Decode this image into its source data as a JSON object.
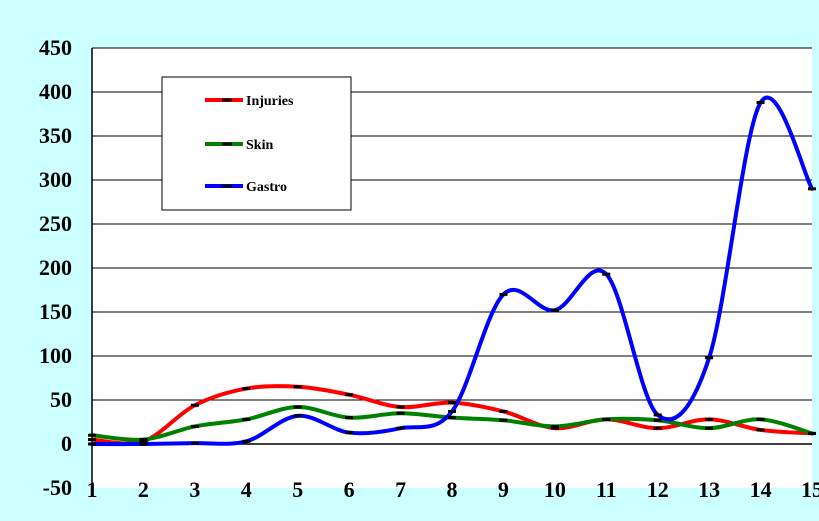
{
  "chart_data": {
    "type": "line",
    "title": "",
    "xlabel": "",
    "ylabel": "",
    "x": [
      1,
      2,
      3,
      4,
      5,
      6,
      7,
      8,
      9,
      10,
      11,
      12,
      13,
      14,
      15
    ],
    "ylim": [
      -50,
      450
    ],
    "yticks": [
      -50,
      0,
      50,
      100,
      150,
      200,
      250,
      300,
      350,
      400,
      450
    ],
    "grid": true,
    "legend": "top-left",
    "smooth": true,
    "background": "#ccffff",
    "plot_background": "#ffffff",
    "series": [
      {
        "name": "Injuries",
        "color": "#ff0000",
        "values": [
          5,
          3,
          44,
          63,
          65,
          56,
          42,
          47,
          37,
          18,
          28,
          18,
          28,
          16,
          12
        ]
      },
      {
        "name": "Skin",
        "color": "#008000",
        "values": [
          10,
          5,
          20,
          28,
          42,
          30,
          35,
          30,
          27,
          20,
          28,
          27,
          18,
          28,
          12
        ]
      },
      {
        "name": "Gastro",
        "color": "#0000ff",
        "values": [
          0,
          0,
          1,
          3,
          32,
          13,
          18,
          37,
          170,
          152,
          193,
          33,
          98,
          388,
          290
        ]
      }
    ]
  }
}
